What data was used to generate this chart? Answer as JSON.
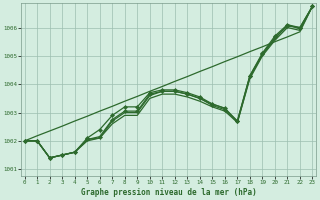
{
  "title": "Graphe pression niveau de la mer (hPa)",
  "bg_color": "#d4ede0",
  "grid_color": "#9dbfb0",
  "line_color": "#2d6a2d",
  "xlim": [
    -0.3,
    23.3
  ],
  "ylim": [
    1000.75,
    1006.85
  ],
  "yticks": [
    1001,
    1002,
    1003,
    1004,
    1005,
    1006
  ],
  "xticks": [
    0,
    1,
    2,
    3,
    4,
    5,
    6,
    7,
    8,
    9,
    10,
    11,
    12,
    13,
    14,
    15,
    16,
    17,
    18,
    19,
    20,
    21,
    22,
    23
  ],
  "series_upper": [
    1002.0,
    1002.0,
    1001.4,
    1001.5,
    1001.6,
    1002.1,
    1002.4,
    1002.9,
    1003.2,
    1003.2,
    1003.7,
    1003.8,
    1003.8,
    1003.7,
    1003.55,
    1003.3,
    1003.15,
    1002.7,
    1004.3,
    1005.1,
    1005.7,
    1006.1,
    1006.0,
    1006.75
  ],
  "series_lower": [
    1002.0,
    1002.0,
    1001.4,
    1001.5,
    1001.6,
    1002.05,
    1002.15,
    1002.75,
    1003.05,
    1003.05,
    1003.65,
    1003.75,
    1003.75,
    1003.65,
    1003.5,
    1003.25,
    1003.1,
    1002.7,
    1004.3,
    1005.05,
    1005.65,
    1006.05,
    1006.0,
    1006.75
  ],
  "series_zigzag": [
    1002.0,
    1002.0,
    1001.4,
    1001.5,
    1001.6,
    1002.05,
    1002.1,
    1002.7,
    1003.0,
    1003.0,
    1003.6,
    1003.75,
    1003.75,
    1003.65,
    1003.5,
    1003.3,
    1003.15,
    1002.65,
    1004.25,
    1005.05,
    1005.6,
    1006.1,
    1005.95,
    1006.75
  ],
  "series_straight": [
    1002.0,
    1002.18,
    1002.35,
    1002.52,
    1002.7,
    1002.87,
    1003.05,
    1003.22,
    1003.4,
    1003.57,
    1003.75,
    1003.92,
    1004.1,
    1004.27,
    1004.45,
    1004.62,
    1004.8,
    1004.97,
    1005.15,
    1005.32,
    1005.5,
    1005.67,
    1005.85,
    1006.75
  ],
  "series_fan_low": [
    1002.0,
    1002.0,
    1001.4,
    1001.5,
    1001.6,
    1002.0,
    1002.1,
    1002.6,
    1002.9,
    1002.9,
    1003.5,
    1003.65,
    1003.65,
    1003.55,
    1003.4,
    1003.2,
    1003.05,
    1002.65,
    1004.2,
    1005.0,
    1005.55,
    1006.0,
    1005.9,
    1006.75
  ]
}
